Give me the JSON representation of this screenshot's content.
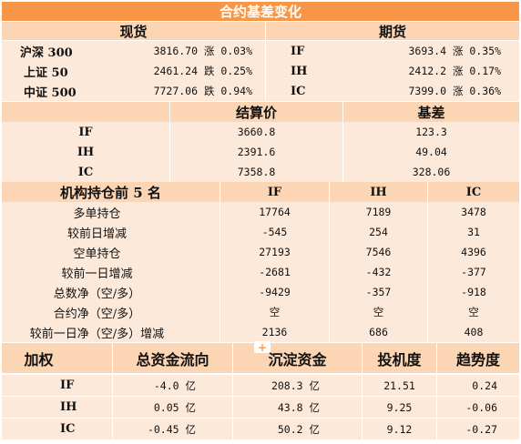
{
  "title": "合约基差变化",
  "spot_header": "现货",
  "futures_header": "期货",
  "spot_rows": [
    {
      "name": "沪深 300",
      "value": "3816.70 涨 0.03%"
    },
    {
      "name": "上证 50",
      "value": "2461.24 跌 0.25%"
    },
    {
      "name": "中证 500",
      "value": "7727.06 跌 0.94%"
    }
  ],
  "futures_rows": [
    {
      "name": "IF",
      "value": "3693.4 涨 0.35%"
    },
    {
      "name": "IH",
      "value": "2412.2 涨 0.17%"
    },
    {
      "name": "IC",
      "value": "7399.0 涨 0.36%"
    }
  ],
  "settle_header": "结算价",
  "basis_header": "基差",
  "settle_rows": [
    {
      "name": "IF",
      "settle": "3660.8",
      "basis": "123.3"
    },
    {
      "name": "IH",
      "settle": "2391.6",
      "basis": "49.04"
    },
    {
      "name": "IC",
      "settle": "7358.8",
      "basis": "328.06"
    }
  ],
  "inst_header": "机构持仓前 5 名",
  "inst_cols": [
    "IF",
    "IH",
    "IC"
  ],
  "inst_rows": [
    {
      "label": "多单持仓",
      "values": [
        "17764",
        "7189",
        "3478"
      ]
    },
    {
      "label": "较前日增减",
      "values": [
        "-545",
        "254",
        "31"
      ]
    },
    {
      "label": "空单持仓",
      "values": [
        "27193",
        "7546",
        "4396"
      ]
    },
    {
      "label": "较前一日增减",
      "values": [
        "-2681",
        "-432",
        "-377"
      ]
    },
    {
      "label": "总数净（空/多）",
      "values": [
        "-9429",
        "-357",
        "-918"
      ]
    },
    {
      "label": "合约净（空/多）",
      "values": [
        "空",
        "空",
        "空"
      ]
    },
    {
      "label": "较前一日净（空/多）增减",
      "values": [
        "2136",
        "686",
        "408"
      ]
    }
  ],
  "weight_header": {
    "col1": "加权",
    "col2": "总资金流向",
    "col3": "沉淀资金",
    "col4": "投机度",
    "col5": "趋势度"
  },
  "weight_rows": [
    {
      "name": "IF",
      "flow": "-4.0 亿",
      "sediment": "208.3 亿",
      "spec": "21.51",
      "trend": "0.24"
    },
    {
      "name": "IH",
      "flow": "0.05 亿",
      "sediment": "43.8 亿",
      "spec": "9.25",
      "trend": "-0.06"
    },
    {
      "name": "IC",
      "flow": "-0.45 亿",
      "sediment": "50.2 亿",
      "spec": "9.12",
      "trend": "-0.27"
    }
  ],
  "colors": {
    "title_bg": "#f79646",
    "header_bg": "#fcd5b4",
    "row_bg": "#fde9d9"
  }
}
